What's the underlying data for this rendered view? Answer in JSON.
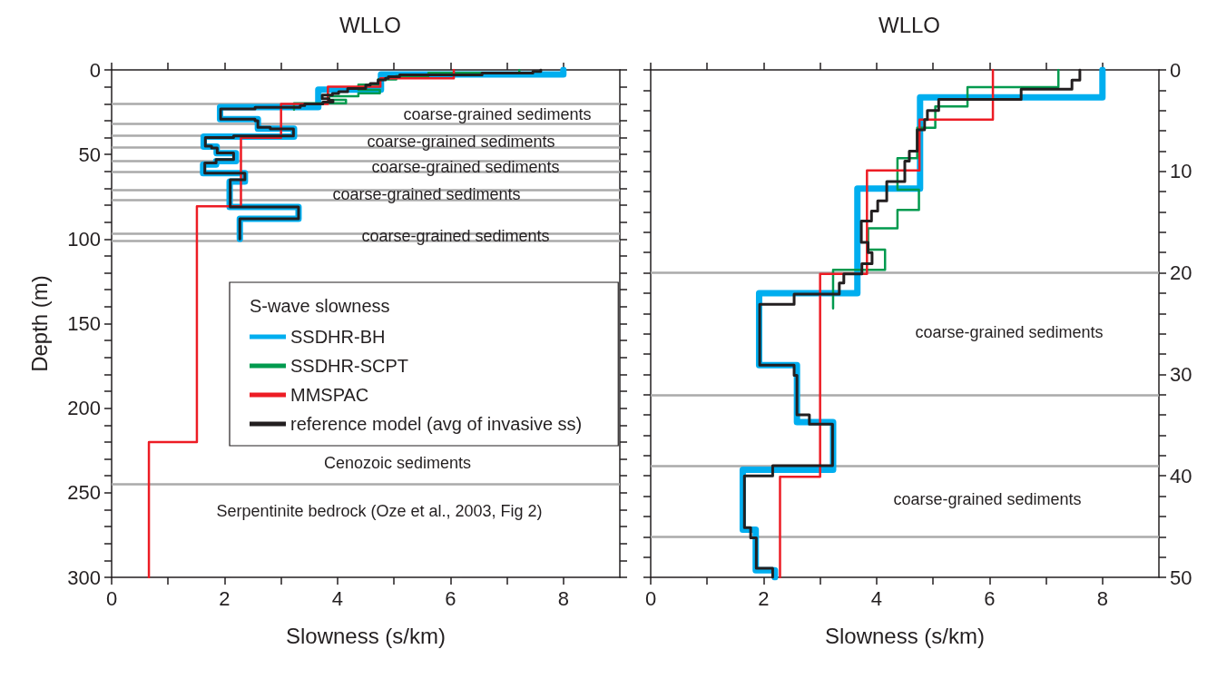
{
  "chart_data": [
    {
      "type": "line",
      "title": "WLLO",
      "xlabel": "Slowness (s/km)",
      "ylabel": "Depth (m)",
      "legend_title": "S-wave slowness",
      "legend": "right",
      "xlim": [
        0,
        9
      ],
      "xticks": [
        0,
        {
          "value": 1,
          "label": null
        },
        2,
        {
          "value": 3,
          "label": null
        },
        4,
        {
          "value": 5,
          "label": null
        },
        6,
        {
          "value": 7,
          "label": null
        },
        8
      ],
      "ylim": [
        300,
        0
      ],
      "yticks": [
        0,
        {
          "value": 10,
          "label": null
        },
        {
          "value": 20,
          "label": null
        },
        {
          "value": 30,
          "label": null
        },
        {
          "value": 40,
          "label": null
        },
        50,
        {
          "value": 60,
          "label": null
        },
        {
          "value": 70,
          "label": null
        },
        {
          "value": 80,
          "label": null
        },
        {
          "value": 90,
          "label": null
        },
        100,
        {
          "value": 110,
          "label": null
        },
        {
          "value": 120,
          "label": null
        },
        {
          "value": 130,
          "label": null
        },
        {
          "value": 140,
          "label": null
        },
        150,
        {
          "value": 160,
          "label": null
        },
        {
          "value": 170,
          "label": null
        },
        {
          "value": 180,
          "label": null
        },
        {
          "value": 190,
          "label": null
        },
        200,
        {
          "value": 210,
          "label": null
        },
        {
          "value": 220,
          "label": null
        },
        {
          "value": 230,
          "label": null
        },
        {
          "value": 240,
          "label": null
        },
        250,
        {
          "value": 260,
          "label": null
        },
        {
          "value": 270,
          "label": null
        },
        {
          "value": 280,
          "label": null
        },
        {
          "value": 290,
          "label": null
        },
        300
      ],
      "series": [
        {
          "name": "SSDHR-BH",
          "color": "#00aeef",
          "x": [
            8,
            8,
            4.77,
            4.77,
            3.66,
            3.66,
            1.92,
            1.92,
            2.59,
            2.59,
            3.23,
            3.23,
            1.63,
            1.63,
            1.86,
            1.86,
            2.2,
            2.2,
            1.85,
            1.85,
            1.62,
            1.62,
            2.36,
            2.36,
            2.09,
            2.09,
            3.31,
            3.31,
            2.27,
            2.27
          ],
          "values": [
            0,
            2.7,
            2.7,
            11.7,
            11.7,
            22,
            22,
            29.1,
            29.1,
            34.7,
            34.7,
            39.4,
            39.4,
            45.3,
            45.3,
            49.3,
            49.3,
            54,
            54,
            56,
            56,
            61,
            61,
            66,
            66,
            81,
            81,
            88,
            88,
            100
          ]
        },
        {
          "name": "SSDHR-SCPT",
          "color": "#009a4e",
          "x": [
            7.22,
            7.22,
            5.61,
            5.61,
            5.04,
            5.04,
            4.72,
            4.72,
            4.37,
            4.37,
            4.75,
            4.75,
            4.37,
            4.37,
            3.85,
            3.85,
            4.15,
            4.15,
            3.23,
            3.23
          ],
          "values": [
            0,
            1.7,
            1.7,
            3.6,
            3.6,
            5.7,
            5.7,
            8.7,
            8.7,
            11.8,
            11.8,
            13.8,
            13.8,
            15.6,
            15.6,
            17.7,
            17.7,
            19.7,
            19.7,
            23.5
          ]
        },
        {
          "name": "MMSPAC",
          "color": "#ed1c24",
          "x": [
            6.06,
            6.06,
            4.76,
            4.76,
            3.83,
            3.83,
            3.0,
            3.0,
            2.29,
            2.29,
            1.51,
            1.51,
            0.66,
            0.66
          ],
          "values": [
            0,
            4.9,
            4.9,
            9.9,
            9.9,
            20.1,
            20.1,
            40.1,
            40.1,
            80.6,
            80.6,
            220,
            220,
            300
          ]
        },
        {
          "name": "reference model (avg of invasive ss)",
          "color": "#231f20",
          "x": [
            7.6,
            7.6,
            7.46,
            7.46,
            6.56,
            6.56,
            5.1,
            5.1,
            4.9,
            4.9,
            4.85,
            4.85,
            4.72,
            4.72,
            4.58,
            4.58,
            4.5,
            4.5,
            4.18,
            4.18,
            4.02,
            4.02,
            3.91,
            3.91,
            3.73,
            3.73,
            3.85,
            3.85,
            3.92,
            3.92,
            3.74,
            3.74,
            3.42,
            3.42,
            3.34,
            3.34,
            2.54,
            2.54,
            1.93,
            1.93,
            2.54,
            2.54,
            2.59,
            2.59,
            2.81,
            2.81,
            3.22,
            3.22,
            2.16,
            2.16,
            1.66,
            1.66,
            1.77,
            1.77,
            1.87,
            1.87,
            2.16,
            2.16,
            1.85,
            1.85,
            1.65,
            1.65,
            2.36,
            2.36,
            2.1,
            2.1,
            3.31,
            3.31,
            2.27,
            2.27
          ],
          "values": [
            0,
            1,
            1,
            1.9,
            1.9,
            2.9,
            2.9,
            4,
            4,
            4.9,
            4.9,
            5.9,
            5.9,
            8,
            8,
            9,
            9,
            11,
            11,
            12.9,
            12.9,
            13.9,
            13.9,
            14.9,
            14.9,
            17,
            17,
            18,
            18,
            19.1,
            19.1,
            20.1,
            20.1,
            21,
            21,
            22.1,
            22.1,
            23.1,
            23.1,
            29.1,
            29.1,
            30.1,
            30.1,
            34,
            34,
            34.9,
            34.9,
            39,
            39,
            40,
            40,
            45.1,
            45.1,
            46.1,
            46.1,
            49.1,
            49.1,
            53,
            53,
            55,
            55,
            61,
            61,
            65,
            65,
            81,
            81,
            88,
            88,
            100
          ]
        }
      ],
      "ref_lines": [
        {
          "axis": "y",
          "value": 20,
          "color": "#aaaaaa"
        },
        {
          "axis": "y",
          "value": 32,
          "color": "#aaaaaa"
        },
        {
          "axis": "y",
          "value": 39,
          "color": "#aaaaaa"
        },
        {
          "axis": "y",
          "value": 46,
          "color": "#aaaaaa"
        },
        {
          "axis": "y",
          "value": 54,
          "color": "#aaaaaa"
        },
        {
          "axis": "y",
          "value": 60,
          "color": "#aaaaaa"
        },
        {
          "axis": "y",
          "value": 71,
          "color": "#aaaaaa"
        },
        {
          "axis": "y",
          "value": 77,
          "color": "#aaaaaa"
        },
        {
          "axis": "y",
          "value": 97,
          "color": "#aaaaaa"
        },
        {
          "axis": "y",
          "value": 101,
          "color": "#aaaaaa"
        },
        {
          "axis": "y",
          "value": 245,
          "color": "#aaaaaa"
        }
      ],
      "annotations": [
        "coarse-grained sediments",
        "coarse-grained sediments",
        "coarse-grained sediments",
        "coarse-grained sediments",
        "coarse-grained sediments",
        "Cenozoic sediments",
        "Serpentinite bedrock (Oze et al., 2003, Fig 2)"
      ]
    },
    {
      "type": "line",
      "title": "WLLO",
      "xlabel": "Slowness (s/km)",
      "xlim": [
        0,
        9
      ],
      "xticks": [
        0,
        {
          "value": 1,
          "label": null
        },
        2,
        {
          "value": 3,
          "label": null
        },
        4,
        {
          "value": 5,
          "label": null
        },
        6,
        {
          "value": 7,
          "label": null
        },
        8
      ],
      "ylim": [
        50,
        0
      ],
      "yticks": [
        0,
        {
          "value": 2,
          "label": null
        },
        {
          "value": 4,
          "label": null
        },
        {
          "value": 6,
          "label": null
        },
        {
          "value": 8,
          "label": null
        },
        10,
        {
          "value": 12,
          "label": null
        },
        {
          "value": 14,
          "label": null
        },
        {
          "value": 16,
          "label": null
        },
        {
          "value": 18,
          "label": null
        },
        20,
        {
          "value": 22,
          "label": null
        },
        {
          "value": 24,
          "label": null
        },
        {
          "value": 26,
          "label": null
        },
        {
          "value": 28,
          "label": null
        },
        30,
        {
          "value": 32,
          "label": null
        },
        {
          "value": 34,
          "label": null
        },
        {
          "value": 36,
          "label": null
        },
        {
          "value": 38,
          "label": null
        },
        40,
        {
          "value": 42,
          "label": null
        },
        {
          "value": 44,
          "label": null
        },
        {
          "value": 46,
          "label": null
        },
        {
          "value": 48,
          "label": null
        },
        50
      ],
      "series": [
        {
          "color": "#00aeef",
          "x": [
            8,
            8,
            4.77,
            4.77,
            3.66,
            3.66,
            1.92,
            1.92,
            2.59,
            2.59,
            3.23,
            3.23,
            1.63,
            1.63,
            1.86,
            1.86,
            2.2,
            2.2
          ],
          "values": [
            0,
            2.7,
            2.7,
            11.7,
            11.7,
            22,
            22,
            29.1,
            29.1,
            34.7,
            34.7,
            39.4,
            39.4,
            45.3,
            45.3,
            49.3,
            49.3,
            50
          ]
        },
        {
          "color": "#009a4e",
          "x": [
            7.22,
            7.22,
            5.61,
            5.61,
            5.04,
            5.04,
            4.72,
            4.72,
            4.37,
            4.37,
            4.75,
            4.75,
            4.37,
            4.37,
            3.85,
            3.85,
            4.15,
            4.15,
            3.23,
            3.23
          ],
          "values": [
            0,
            1.7,
            1.7,
            3.6,
            3.6,
            5.7,
            5.7,
            8.7,
            8.7,
            11.8,
            11.8,
            13.8,
            13.8,
            15.6,
            15.6,
            17.7,
            17.7,
            19.7,
            19.7,
            23.5
          ]
        },
        {
          "color": "#ed1c24",
          "x": [
            6.06,
            6.06,
            4.76,
            4.76,
            3.83,
            3.83,
            3.0,
            3.0,
            2.29,
            2.29
          ],
          "values": [
            0,
            4.9,
            4.9,
            9.9,
            9.9,
            20.1,
            20.1,
            40.1,
            40.1,
            50
          ]
        },
        {
          "color": "#231f20",
          "x": [
            7.6,
            7.6,
            7.46,
            7.46,
            6.56,
            6.56,
            5.1,
            5.1,
            4.9,
            4.9,
            4.85,
            4.85,
            4.72,
            4.72,
            4.58,
            4.58,
            4.5,
            4.5,
            4.18,
            4.18,
            4.02,
            4.02,
            3.91,
            3.91,
            3.73,
            3.73,
            3.85,
            3.85,
            3.92,
            3.92,
            3.74,
            3.74,
            3.42,
            3.42,
            3.34,
            3.34,
            2.54,
            2.54,
            1.93,
            1.93,
            2.54,
            2.54,
            2.59,
            2.59,
            2.81,
            2.81,
            3.22,
            3.22,
            2.16,
            2.16,
            1.66,
            1.66,
            1.77,
            1.77,
            1.87,
            1.87,
            2.16,
            2.16
          ],
          "values": [
            0,
            1,
            1,
            1.9,
            1.9,
            2.9,
            2.9,
            4,
            4,
            4.9,
            4.9,
            5.9,
            5.9,
            8,
            8,
            9,
            9,
            11,
            11,
            12.9,
            12.9,
            13.9,
            13.9,
            14.9,
            14.9,
            17,
            17,
            18,
            18,
            19.1,
            19.1,
            20.1,
            20.1,
            21,
            21,
            22.1,
            22.1,
            23.1,
            23.1,
            29.1,
            29.1,
            30.1,
            30.1,
            34,
            34,
            34.9,
            34.9,
            39,
            39,
            40,
            40,
            45.1,
            45.1,
            46.1,
            46.1,
            49.1,
            49.1,
            50
          ]
        }
      ],
      "ref_lines": [
        {
          "axis": "y",
          "value": 20,
          "color": "#aaaaaa"
        },
        {
          "axis": "y",
          "value": 32,
          "color": "#aaaaaa"
        },
        {
          "axis": "y",
          "value": 39,
          "color": "#aaaaaa"
        },
        {
          "axis": "y",
          "value": 46,
          "color": "#aaaaaa"
        }
      ],
      "annotations": [
        "coarse-grained sediments",
        "coarse-grained sediments"
      ]
    }
  ]
}
